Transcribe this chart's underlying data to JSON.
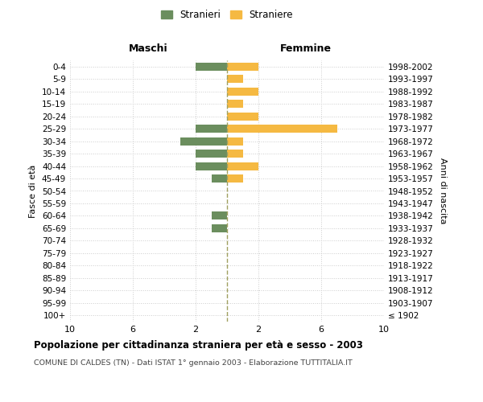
{
  "age_groups": [
    "100+",
    "95-99",
    "90-94",
    "85-89",
    "80-84",
    "75-79",
    "70-74",
    "65-69",
    "60-64",
    "55-59",
    "50-54",
    "45-49",
    "40-44",
    "35-39",
    "30-34",
    "25-29",
    "20-24",
    "15-19",
    "10-14",
    "5-9",
    "0-4"
  ],
  "birth_years": [
    "≤ 1902",
    "1903-1907",
    "1908-1912",
    "1913-1917",
    "1918-1922",
    "1923-1927",
    "1928-1932",
    "1933-1937",
    "1938-1942",
    "1943-1947",
    "1948-1952",
    "1953-1957",
    "1958-1962",
    "1963-1967",
    "1968-1972",
    "1973-1977",
    "1978-1982",
    "1983-1987",
    "1988-1992",
    "1993-1997",
    "1998-2002"
  ],
  "maschi": [
    0,
    0,
    0,
    0,
    0,
    0,
    0,
    1,
    1,
    0,
    0,
    1,
    2,
    2,
    3,
    2,
    0,
    0,
    0,
    0,
    2
  ],
  "femmine": [
    0,
    0,
    0,
    0,
    0,
    0,
    0,
    0,
    0,
    0,
    0,
    1,
    2,
    1,
    1,
    7,
    2,
    1,
    2,
    1,
    2
  ],
  "color_maschi": "#6b8e5e",
  "color_femmine": "#f5b942",
  "color_dashed": "#a0a060",
  "title": "Popolazione per cittadinanza straniera per età e sesso - 2003",
  "subtitle": "COMUNE DI CALDES (TN) - Dati ISTAT 1° gennaio 2003 - Elaborazione TUTTITALIA.IT",
  "xlabel_left": "Maschi",
  "xlabel_right": "Femmine",
  "ylabel_left": "Fasce di età",
  "ylabel_right": "Anni di nascita",
  "legend_maschi": "Stranieri",
  "legend_femmine": "Straniere",
  "bg_color": "#ffffff",
  "grid_color": "#cccccc"
}
